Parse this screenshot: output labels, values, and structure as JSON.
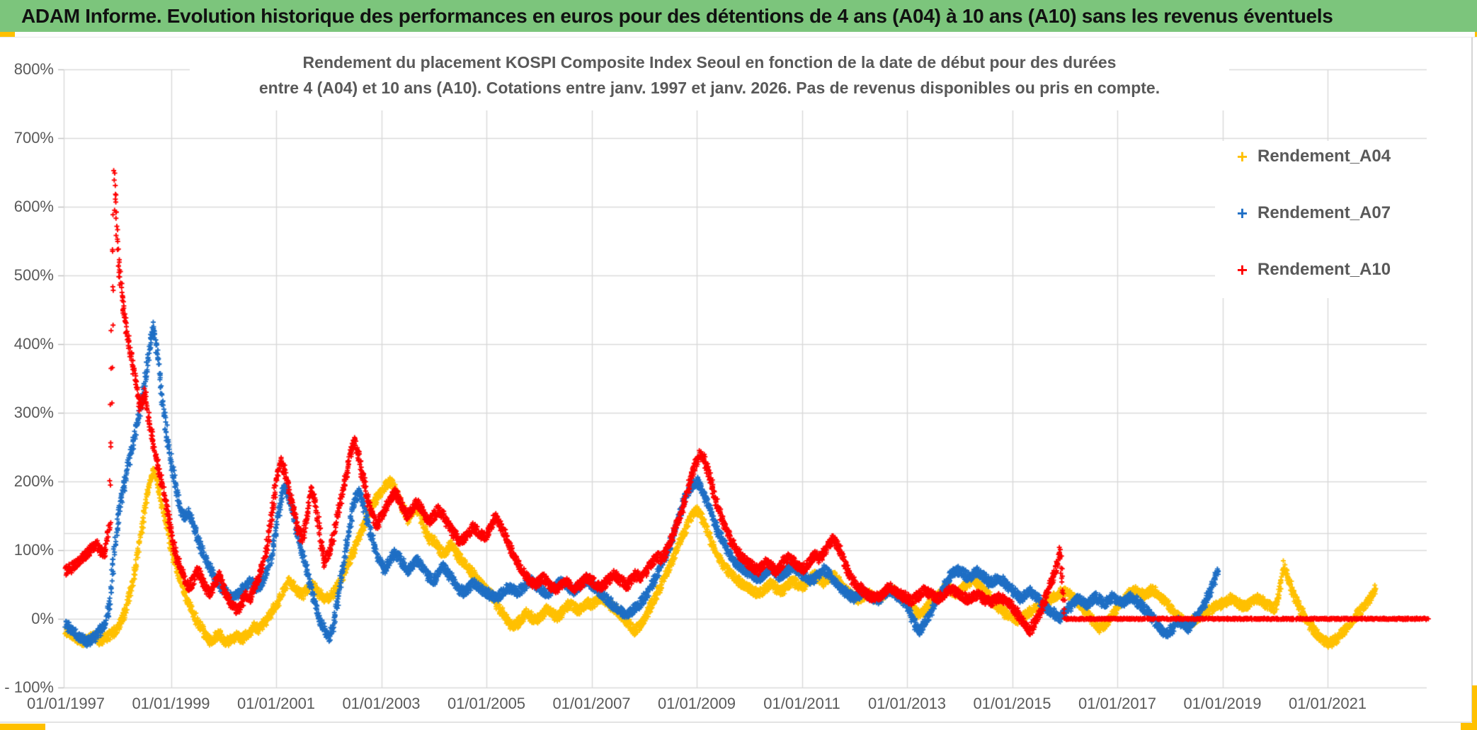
{
  "header": {
    "title": "ADAM Informe. Evolution historique des performances en euros pour des détentions de 4 ans (A04) à 10 ans (A10) sans les revenus éventuels"
  },
  "colors": {
    "header_bg": "#7CC57C",
    "accent_yellow": "#FFC000",
    "grid": "#D9D9D9",
    "axis_text": "#595959",
    "series_a04": "#FFC000",
    "series_a07": "#1F6FC5",
    "series_a10": "#FF0000"
  },
  "chart": {
    "subtitle_line1": "Rendement du placement KOSPI Composite Index Seoul en fonction de la date de début pour des durées",
    "subtitle_line2": "entre 4 (A04) et 10 ans (A10). Cotations entre janv. 1997 et janv. 2026. Pas de revenus disponibles ou pris en compte.",
    "y_axis_labels": [
      "800%",
      "700%",
      "600%",
      "500%",
      "400%",
      "300%",
      "200%",
      "100%",
      "0%",
      "- 100%"
    ],
    "x_axis_labels": [
      "01/01/1997",
      "01/01/1999",
      "01/01/2001",
      "01/01/2003",
      "01/01/2005",
      "01/01/2007",
      "01/01/2009",
      "01/01/2011",
      "01/01/2013",
      "01/01/2015",
      "01/01/2017",
      "01/01/2019",
      "01/01/2021"
    ],
    "legend": [
      {
        "label": "Rendement_A04",
        "marker": "+",
        "color": "#FFC000"
      },
      {
        "label": "Rendement_A07",
        "marker": "+",
        "color": "#1F6FC5"
      },
      {
        "label": "Rendement_A10",
        "marker": "+",
        "color": "#FF0000"
      }
    ]
  },
  "chart_data": {
    "type": "scatter",
    "title": "Rendement du placement KOSPI Composite Index Seoul en fonction de la date de début pour des durées entre 4 (A04) et 10 ans (A10). Cotations entre janv. 1997 et janv. 2026. Pas de revenus disponibles ou pris en compte.",
    "marker": "plus",
    "sampling": "monthly_approx",
    "x_axis": {
      "label": "date de début",
      "start": "1997-01",
      "tick_interval_years": 2,
      "tick_labels": [
        "01/01/1997",
        "01/01/1999",
        "01/01/2001",
        "01/01/2003",
        "01/01/2005",
        "01/01/2007",
        "01/01/2009",
        "01/01/2011",
        "01/01/2013",
        "01/01/2015",
        "01/01/2017",
        "01/01/2019",
        "01/01/2021"
      ]
    },
    "y_axis": {
      "min": -100,
      "max": 800,
      "step": 100,
      "unit": "%",
      "extra_gridline_at": 125,
      "grid": true
    },
    "legend_position": "right-top",
    "series": [
      {
        "name": "Rendement_A04",
        "color": "#FFC000",
        "start": "1997-01",
        "step_months": 1,
        "values": [
          -18,
          -22,
          -26,
          -30,
          -33,
          -30,
          -26,
          -29,
          -32,
          -28,
          -24,
          -20,
          -12,
          0,
          20,
          45,
          80,
          120,
          160,
          195,
          215,
          195,
          165,
          135,
          105,
          80,
          60,
          40,
          22,
          8,
          -5,
          -15,
          -25,
          -32,
          -28,
          -22,
          -30,
          -35,
          -30,
          -25,
          -30,
          -25,
          -18,
          -10,
          -15,
          -8,
          0,
          10,
          20,
          32,
          45,
          55,
          48,
          40,
          35,
          42,
          50,
          44,
          36,
          30,
          30,
          38,
          48,
          60,
          75,
          90,
          105,
          120,
          135,
          150,
          165,
          175,
          185,
          195,
          200,
          190,
          175,
          160,
          145,
          155,
          165,
          150,
          130,
          115,
          115,
          105,
          95,
          100,
          108,
          98,
          88,
          80,
          72,
          65,
          58,
          50,
          42,
          34,
          25,
          15,
          5,
          -5,
          -12,
          -8,
          0,
          8,
          4,
          -2,
          2,
          8,
          14,
          8,
          2,
          8,
          16,
          22,
          18,
          12,
          18,
          24,
          20,
          26,
          32,
          28,
          22,
          16,
          10,
          4,
          -4,
          -12,
          -18,
          -10,
          0,
          12,
          25,
          38,
          52,
          66,
          80,
          95,
          110,
          125,
          140,
          150,
          160,
          150,
          135,
          118,
          102,
          90,
          80,
          72,
          65,
          58,
          52,
          48,
          44,
          40,
          36,
          40,
          46,
          52,
          46,
          40,
          44,
          50,
          56,
          50,
          46,
          52,
          58,
          64,
          58,
          52,
          58,
          64,
          58,
          50,
          42,
          36,
          32,
          28,
          32,
          38,
          34,
          28,
          32,
          38,
          44,
          40,
          34,
          30,
          26,
          20,
          12,
          6,
          12,
          20,
          28,
          34,
          40,
          46,
          42,
          36,
          40,
          46,
          52,
          58,
          52,
          46,
          38,
          30,
          22,
          16,
          10,
          6,
          2,
          -2,
          2,
          6,
          10,
          14,
          18,
          22,
          26,
          30,
          34,
          38,
          40,
          36,
          30,
          24,
          16,
          8,
          0,
          -8,
          -14,
          -10,
          -2,
          8,
          16,
          24,
          32,
          38,
          42,
          38,
          34,
          38,
          42,
          38,
          32,
          26,
          18,
          10,
          2,
          -4,
          -8,
          -4,
          0,
          4,
          8,
          12,
          16,
          20,
          22,
          26,
          30,
          26,
          22,
          18,
          22,
          26,
          30,
          26,
          22,
          18,
          15,
          40,
          78,
          60,
          40,
          25,
          12,
          2,
          -8,
          -18,
          -26,
          -32,
          -35,
          -34,
          -30,
          -24,
          -16,
          -8,
          0,
          8,
          16,
          24,
          34,
          44
        ]
      },
      {
        "name": "Rendement_A07",
        "color": "#1F6FC5",
        "start": "1997-01",
        "step_months": 1,
        "values": [
          -8,
          -14,
          -20,
          -26,
          -31,
          -34,
          -30,
          -24,
          -16,
          -6,
          20,
          90,
          150,
          185,
          215,
          245,
          275,
          305,
          345,
          390,
          430,
          380,
          320,
          270,
          230,
          195,
          165,
          148,
          155,
          140,
          120,
          100,
          85,
          72,
          60,
          50,
          42,
          36,
          30,
          34,
          40,
          48,
          55,
          48,
          42,
          55,
          70,
          95,
          130,
          170,
          195,
          175,
          150,
          120,
          95,
          70,
          45,
          20,
          0,
          -18,
          -28,
          -12,
          25,
          65,
          105,
          145,
          175,
          185,
          165,
          140,
          115,
          95,
          80,
          70,
          85,
          95,
          90,
          80,
          70,
          75,
          85,
          80,
          70,
          60,
          55,
          65,
          75,
          70,
          60,
          50,
          42,
          38,
          45,
          52,
          48,
          42,
          38,
          34,
          30,
          34,
          40,
          46,
          42,
          38,
          44,
          50,
          56,
          50,
          46,
          40,
          36,
          42,
          48,
          54,
          50,
          44,
          40,
          46,
          52,
          58,
          50,
          44,
          38,
          32,
          26,
          20,
          15,
          10,
          6,
          10,
          16,
          22,
          30,
          40,
          52,
          66,
          80,
          95,
          110,
          130,
          150,
          170,
          185,
          195,
          200,
          190,
          175,
          158,
          140,
          125,
          112,
          100,
          90,
          82,
          75,
          70,
          66,
          62,
          58,
          62,
          68,
          74,
          68,
          62,
          66,
          72,
          78,
          72,
          66,
          60,
          55,
          60,
          66,
          72,
          66,
          58,
          50,
          44,
          38,
          34,
          30,
          34,
          40,
          36,
          30,
          26,
          30,
          36,
          42,
          38,
          32,
          28,
          20,
          5,
          -12,
          -18,
          -8,
          5,
          18,
          30,
          42,
          54,
          64,
          70,
          70,
          65,
          60,
          65,
          70,
          65,
          58,
          52,
          55,
          60,
          55,
          48,
          42,
          36,
          30,
          34,
          40,
          34,
          28,
          22,
          16,
          10,
          6,
          2,
          8,
          16,
          24,
          30,
          26,
          20,
          26,
          32,
          28,
          22,
          26,
          32,
          28,
          22,
          26,
          32,
          28,
          22,
          16,
          10,
          2,
          -8,
          -16,
          -22,
          -18,
          -10,
          -2,
          -8,
          -14,
          -6,
          2,
          10,
          22,
          38,
          55,
          70
        ]
      },
      {
        "name": "Rendement_A10",
        "color": "#FF0000",
        "start": "1997-01",
        "step_months": 1,
        "values": [
          70,
          73,
          78,
          84,
          90,
          96,
          103,
          109,
          99,
          93,
          140,
          650,
          520,
          460,
          415,
          380,
          340,
          305,
          330,
          290,
          255,
          225,
          195,
          165,
          130,
          95,
          75,
          60,
          45,
          55,
          70,
          60,
          45,
          35,
          50,
          65,
          45,
          30,
          20,
          12,
          20,
          35,
          30,
          45,
          60,
          80,
          110,
          150,
          200,
          230,
          215,
          185,
          160,
          130,
          115,
          150,
          190,
          170,
          120,
          80,
          95,
          120,
          150,
          180,
          210,
          245,
          260,
          230,
          200,
          170,
          150,
          135,
          150,
          160,
          175,
          185,
          175,
          160,
          150,
          160,
          170,
          160,
          150,
          140,
          150,
          160,
          150,
          140,
          130,
          120,
          112,
          118,
          126,
          134,
          128,
          120,
          120,
          135,
          150,
          140,
          125,
          110,
          95,
          82,
          72,
          62,
          55,
          50,
          55,
          60,
          52,
          46,
          42,
          48,
          54,
          50,
          44,
          48,
          54,
          60,
          56,
          50,
          45,
          50,
          58,
          64,
          60,
          54,
          48,
          56,
          64,
          60,
          66,
          74,
          82,
          92,
          86,
          98,
          112,
          128,
          145,
          165,
          190,
          210,
          230,
          242,
          228,
          205,
          180,
          160,
          142,
          126,
          112,
          100,
          92,
          85,
          80,
          74,
          70,
          76,
          82,
          76,
          70,
          76,
          84,
          90,
          84,
          78,
          72,
          78,
          85,
          92,
          88,
          96,
          106,
          115,
          108,
          94,
          78,
          62,
          52,
          46,
          40,
          36,
          32,
          30,
          34,
          40,
          46,
          42,
          38,
          34,
          30,
          26,
          30,
          36,
          42,
          38,
          34,
          30,
          34,
          40,
          44,
          40,
          36,
          32,
          28,
          32,
          36,
          32,
          28,
          24,
          28,
          32,
          28,
          24,
          18,
          10,
          0,
          -10,
          -18,
          -8,
          5,
          20,
          38,
          55,
          75,
          98,
          0,
          0,
          0,
          0,
          0,
          0,
          0,
          0,
          0,
          0,
          0,
          0,
          0,
          0,
          0,
          0,
          0,
          0,
          0,
          0,
          0,
          0,
          0,
          0,
          0,
          0,
          0,
          0,
          0,
          0,
          0,
          0,
          0,
          0,
          0,
          0,
          0,
          0,
          0,
          0,
          0,
          0,
          0,
          0,
          0,
          0,
          0,
          0,
          0,
          0,
          0,
          0,
          0,
          0,
          0,
          0,
          0,
          0,
          0,
          0,
          0,
          0,
          0,
          0,
          0,
          0,
          0,
          0,
          0,
          0,
          0,
          0,
          0,
          0,
          0,
          0,
          0,
          0,
          0,
          0,
          0,
          0,
          0,
          0
        ]
      }
    ]
  }
}
